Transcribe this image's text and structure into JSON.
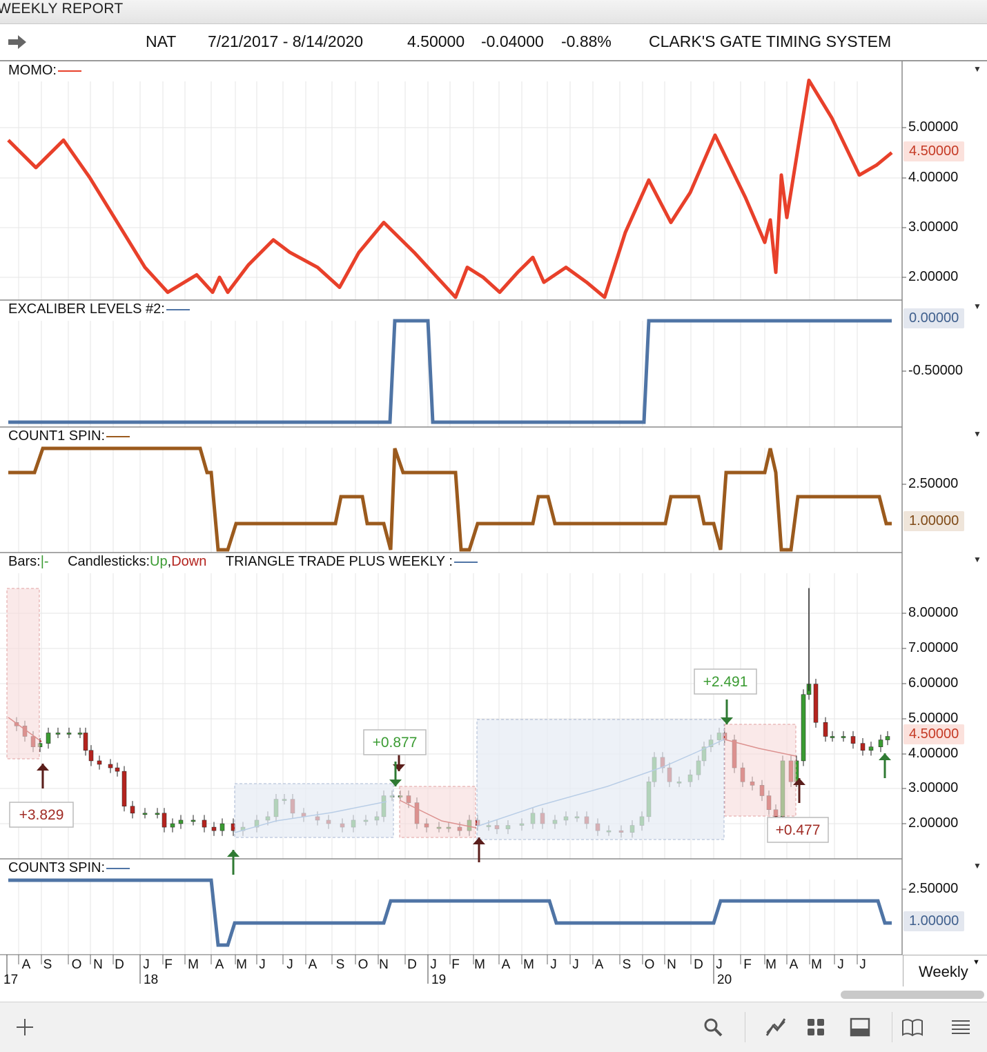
{
  "window": {
    "title": "WEEKLY REPORT"
  },
  "symbol_bar": {
    "symbol": "NAT",
    "date_range": "7/21/2017 - 8/14/2020",
    "last_price": "4.50000",
    "change": "-0.04000",
    "change_pct": "-0.88%",
    "system_name": "CLARK'S GATE TIMING SYSTEM"
  },
  "panels": {
    "momo": {
      "label": "MOMO:",
      "color": "#e8402a",
      "ticks": [
        "5.00000",
        "4.00000",
        "3.00000",
        "2.00000"
      ],
      "current": "4.50000"
    },
    "excaliber": {
      "label": "EXCALIBER LEVELS #2:",
      "color": "#4f74a5",
      "ticks": [
        "-0.50000"
      ],
      "current": "0.00000"
    },
    "count1": {
      "label": "COUNT1 SPIN:",
      "color": "#9b5a1d",
      "ticks": [
        "2.50000"
      ],
      "current": "1.00000"
    },
    "price": {
      "label_bars": "Bars:",
      "bars_symbol": "|-",
      "label_candles": "Candlesticks:",
      "up": "Up",
      "comma": ",",
      "down": "Down",
      "label_indicator": "TRIANGLE TRADE PLUS WEEKLY :",
      "ticks": [
        "8.00000",
        "7.00000",
        "6.00000",
        "5.00000",
        "4.00000",
        "3.00000",
        "2.00000"
      ],
      "current": "4.50000",
      "annotations": [
        "+3.829",
        "+0.877",
        "+2.491",
        "+0.477"
      ]
    },
    "count3": {
      "label": "COUNT3 SPIN:",
      "color": "#4f74a5",
      "ticks": [
        "2.50000"
      ],
      "current": "1.00000"
    }
  },
  "x_axis": {
    "months": [
      "A",
      "S",
      "O",
      "N",
      "D",
      "J",
      "F",
      "M",
      "A",
      "M",
      "J",
      "J",
      "A",
      "S",
      "O",
      "N",
      "D",
      "J",
      "F",
      "M",
      "A",
      "M",
      "J",
      "J",
      "A",
      "S",
      "O",
      "N",
      "D",
      "J",
      "F",
      "M",
      "A",
      "M",
      "J",
      "J"
    ],
    "years": [
      "17",
      "18",
      "19",
      "20"
    ]
  },
  "timeframe": "Weekly",
  "colors": {
    "up": "#3a9b32",
    "down": "#b4241f",
    "grid": "#e6e6e6"
  }
}
